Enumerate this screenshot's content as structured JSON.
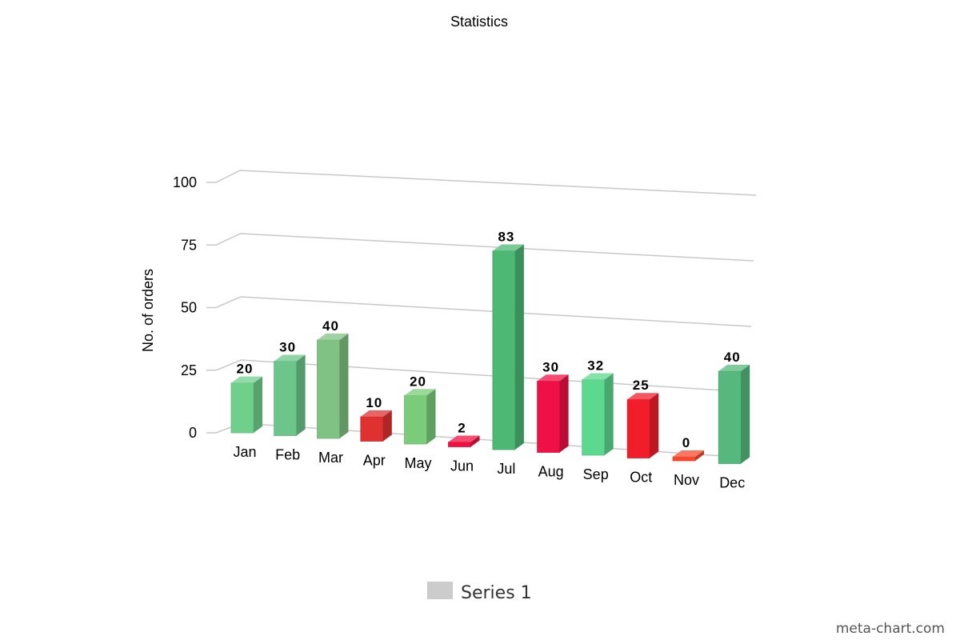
{
  "chart_data": {
    "type": "bar",
    "title": "Statistics",
    "ylabel": "No. of orders",
    "xlabel": "",
    "ylim": [
      0,
      100
    ],
    "yticks": [
      0,
      25,
      50,
      75,
      100
    ],
    "grid": true,
    "categories": [
      "Jan",
      "Feb",
      "Mar",
      "Apr",
      "May",
      "Jun",
      "Jul",
      "Aug",
      "Sep",
      "Oct",
      "Nov",
      "Dec"
    ],
    "series": [
      {
        "name": "Series 1",
        "values": [
          20,
          30,
          40,
          10,
          20,
          2,
          83,
          30,
          32,
          25,
          0,
          40
        ],
        "colors": [
          "#6fd08c",
          "#6cc58b",
          "#80c283",
          "#e03131",
          "#7acc7a",
          "#ef1240",
          "#4cb873",
          "#ef1046",
          "#5dd88f",
          "#f21d2b",
          "#f9492c",
          "#56b87d"
        ]
      }
    ],
    "data_labels": [
      "20",
      "30",
      "40",
      "10",
      "20",
      "2",
      "83",
      "30",
      "32",
      "25",
      "0",
      "40"
    ],
    "legend": {
      "position": "bottom",
      "entries": [
        "Series 1"
      ],
      "swatch_color": "#cccccc"
    }
  },
  "credit": "meta-chart.com"
}
